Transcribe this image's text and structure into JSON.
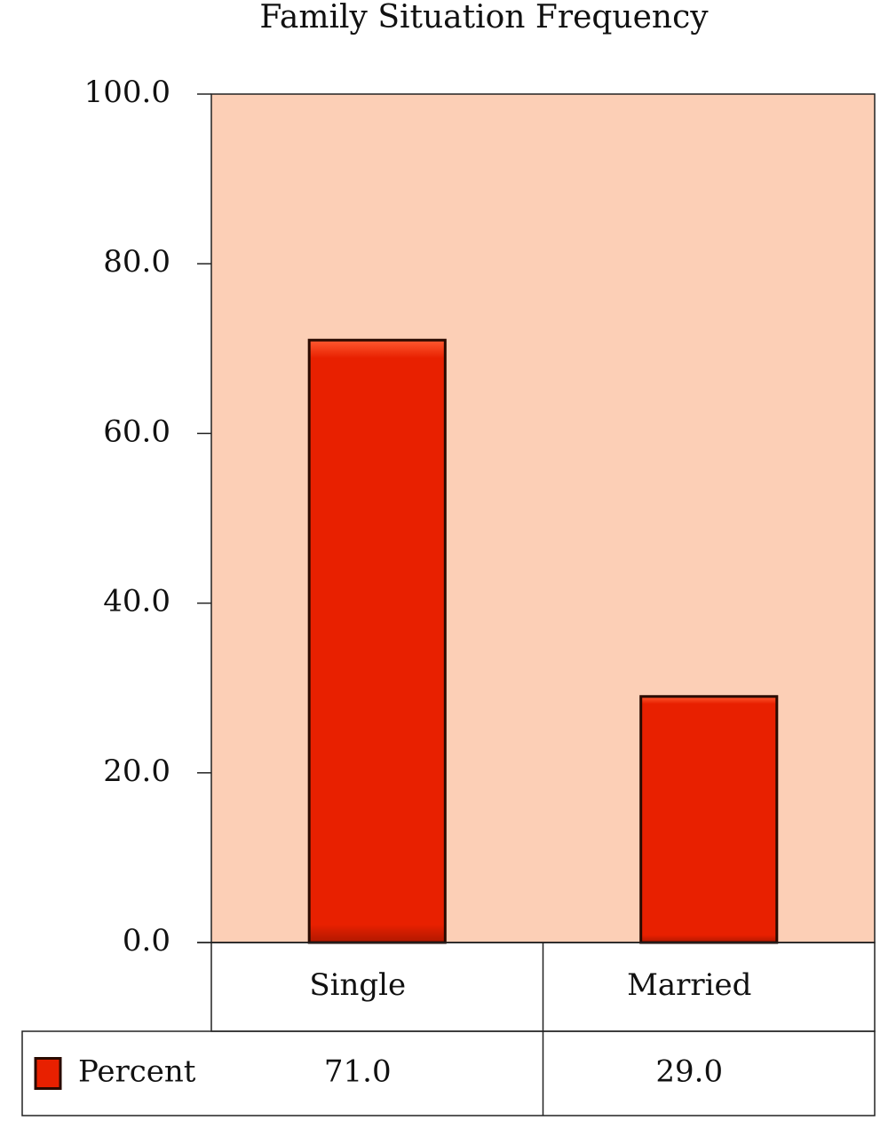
{
  "chart_data": {
    "type": "bar",
    "title": "Family Situation Frequency",
    "categories": [
      "Single",
      "Married"
    ],
    "series": [
      {
        "name": "Percent",
        "color": "#e82000",
        "values": [
          71.0,
          29.0
        ],
        "value_labels": [
          "71.0",
          "29.0"
        ]
      }
    ],
    "ylim": [
      0,
      100
    ],
    "yticks": [
      {
        "value": 0,
        "label": "0.0"
      },
      {
        "value": 20,
        "label": "20.0"
      },
      {
        "value": 40,
        "label": "40.0"
      },
      {
        "value": 60,
        "label": "60.0"
      },
      {
        "value": 80,
        "label": "80.0"
      },
      {
        "value": 100,
        "label": "100.0"
      }
    ],
    "background": "#fccfb6"
  }
}
